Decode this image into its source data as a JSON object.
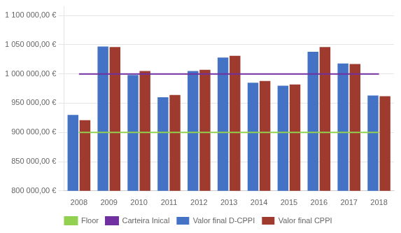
{
  "chart_data": {
    "type": "bar",
    "categories": [
      "2008",
      "2009",
      "2010",
      "2011",
      "2012",
      "2013",
      "2014",
      "2015",
      "2016",
      "2017",
      "2018"
    ],
    "series": [
      {
        "name": "Valor final D-CPPI",
        "type": "bar",
        "color": "#4472C4",
        "values": [
          930000,
          1047000,
          998000,
          960000,
          1005000,
          1028000,
          985000,
          980000,
          1038000,
          1018000,
          963000
        ]
      },
      {
        "name": "Valor final CPPI",
        "type": "bar",
        "color": "#9E3B2E",
        "values": [
          921000,
          1046000,
          1005000,
          964000,
          1007000,
          1031000,
          988000,
          982000,
          1046000,
          1017000,
          962000
        ]
      },
      {
        "name": "Floor",
        "type": "line",
        "color": "#92D050",
        "values": [
          900000,
          900000,
          900000,
          900000,
          900000,
          900000,
          900000,
          900000,
          900000,
          900000,
          900000
        ]
      },
      {
        "name": "Carteira Inical",
        "type": "line",
        "color": "#7030A0",
        "values": [
          1000000,
          1000000,
          1000000,
          1000000,
          1000000,
          1000000,
          1000000,
          1000000,
          1000000,
          1000000,
          1000000
        ]
      }
    ],
    "ylim": [
      800000,
      1115000
    ],
    "yticks": [
      {
        "value": 800000,
        "label": "800 000,00 €"
      },
      {
        "value": 850000,
        "label": "850 000,00 €"
      },
      {
        "value": 900000,
        "label": "900 000,00 €"
      },
      {
        "value": 950000,
        "label": "950 000,00 €"
      },
      {
        "value": 1000000,
        "label": "1 000 000,00 €"
      },
      {
        "value": 1050000,
        "label": "1 050 000,00 €"
      },
      {
        "value": 1100000,
        "label": "1 100 000,00 €"
      }
    ],
    "grid": "y",
    "legend": "bottom"
  }
}
